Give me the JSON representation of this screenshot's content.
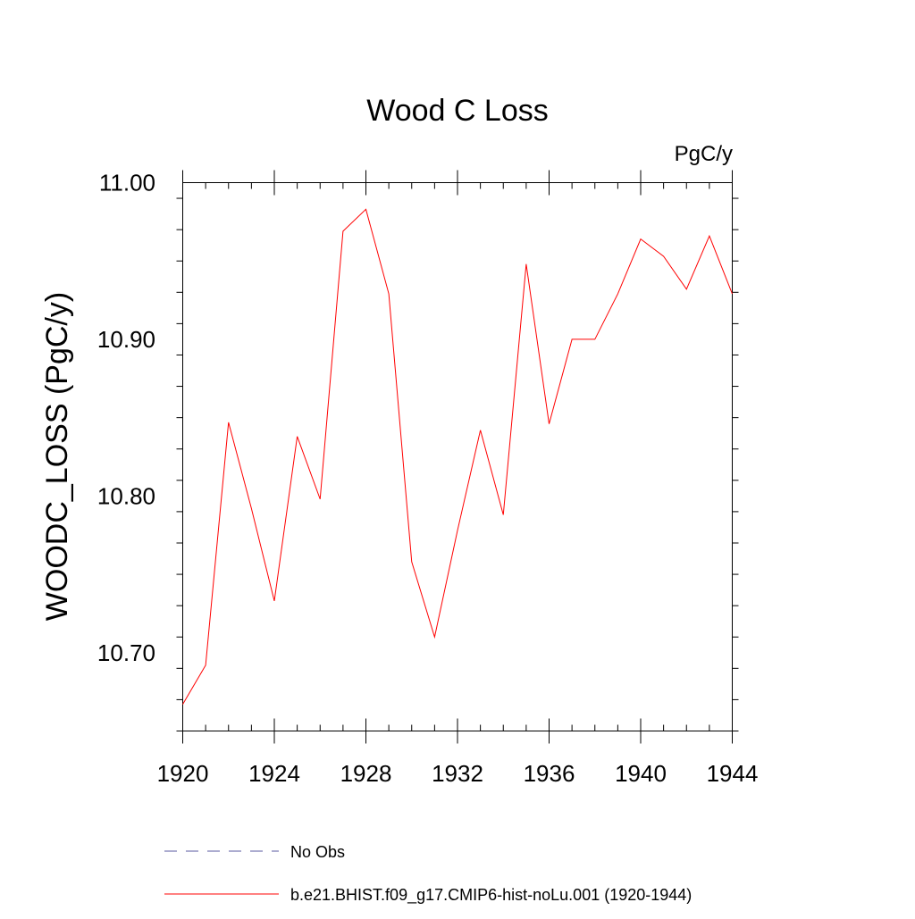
{
  "chart_data": {
    "type": "line",
    "title": "Wood C Loss",
    "units_label": "PgC/y",
    "ylabel": "WOODC_LOSS  (PgC/y)",
    "xlabel": "",
    "xlim": [
      1920,
      1944
    ],
    "ylim": [
      10.65,
      11.0
    ],
    "x_ticks": [
      "1920",
      "1924",
      "1928",
      "1932",
      "1936",
      "1940",
      "1944"
    ],
    "y_ticks": [
      "10.70",
      "10.80",
      "10.90",
      "11.00"
    ],
    "grid": false,
    "legend_position": "bottom",
    "series": [
      {
        "name": "No Obs",
        "color": "#5a5aa0",
        "dash": "dashed",
        "x": [],
        "y": []
      },
      {
        "name": "b.e21.BHIST.f09_g17.CMIP6-hist-noLu.001 (1920-1944)",
        "color": "#ff0000",
        "dash": "solid",
        "x": [
          1920,
          1921,
          1922,
          1923,
          1924,
          1925,
          1926,
          1927,
          1928,
          1929,
          1930,
          1931,
          1932,
          1933,
          1934,
          1935,
          1936,
          1937,
          1938,
          1939,
          1940,
          1941,
          1942,
          1943,
          1944
        ],
        "y": [
          10.667,
          10.692,
          10.847,
          10.792,
          10.733,
          10.838,
          10.798,
          10.969,
          10.983,
          10.929,
          10.758,
          10.71,
          10.778,
          10.842,
          10.788,
          10.948,
          10.846,
          10.9,
          10.9,
          10.929,
          10.964,
          10.953,
          10.932,
          10.966,
          10.929
        ]
      }
    ]
  }
}
